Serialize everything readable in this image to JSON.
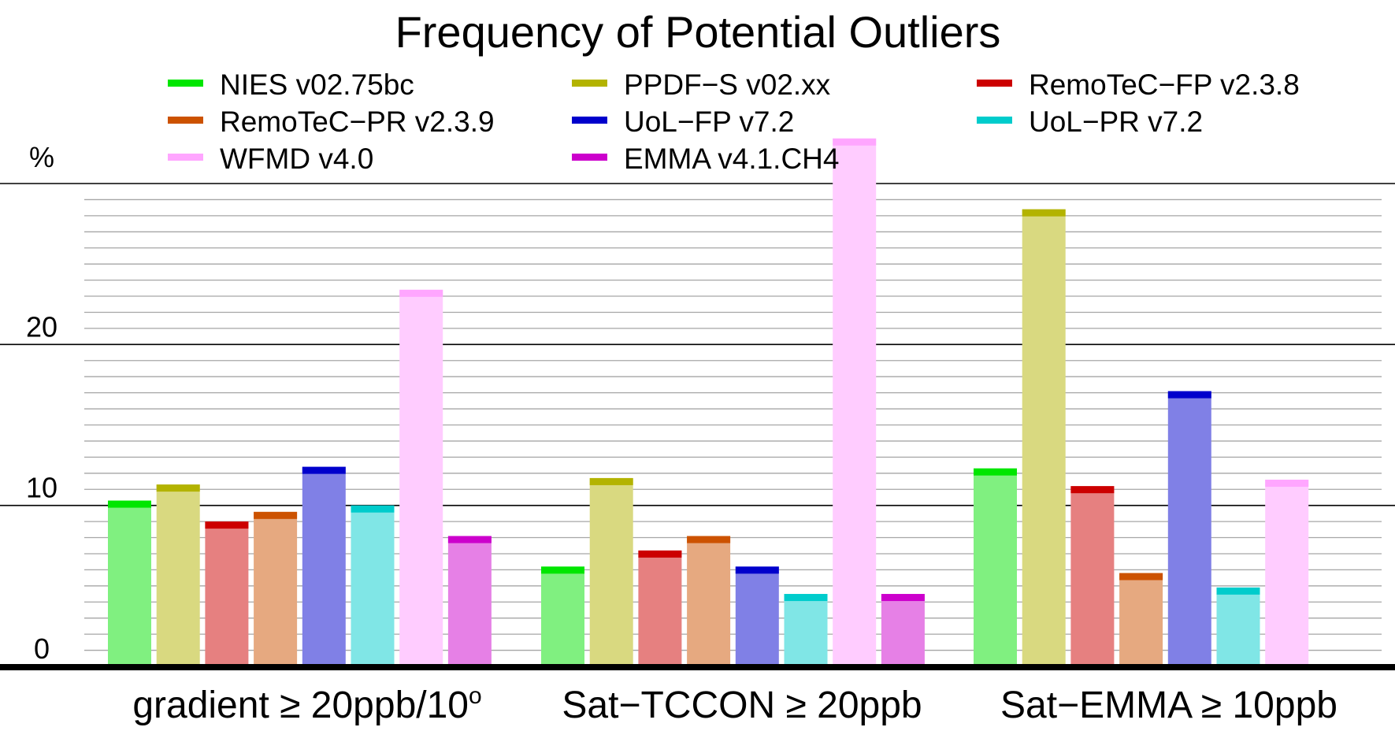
{
  "chart_data": {
    "type": "bar",
    "title": "Frequency of Potential Outliers",
    "ylabel": "%",
    "ylim": [
      0,
      30
    ],
    "yticks": [
      0,
      10,
      20
    ],
    "minor_grid_step": 1,
    "grid": true,
    "legend_position": "top",
    "categories": [
      {
        "pre": "gradient ≥ 20ppb/10",
        "sup": "o"
      },
      {
        "pre": "Sat−TCCON ≥ 20ppb",
        "sup": ""
      },
      {
        "pre": "Sat−EMMA ≥ 10ppb",
        "sup": ""
      }
    ],
    "series": [
      {
        "name": "NIES v02.75bc",
        "color": "#00e600",
        "fill": "#80f080",
        "values": [
          10.3,
          6.2,
          12.3
        ]
      },
      {
        "name": "PPDF−S v02.xx",
        "color": "#b3b300",
        "fill": "#d9d980",
        "values": [
          11.3,
          11.7,
          28.4
        ]
      },
      {
        "name": "RemoTeC−FP v2.3.8",
        "color": "#cc0000",
        "fill": "#e68080",
        "values": [
          9.0,
          7.2,
          11.2
        ]
      },
      {
        "name": "RemoTeC−PR v2.3.9",
        "color": "#cc5200",
        "fill": "#e6a980",
        "values": [
          9.6,
          8.1,
          5.8
        ]
      },
      {
        "name": "UoL−FP v7.2",
        "color": "#0000cc",
        "fill": "#8080e6",
        "values": [
          12.4,
          6.2,
          17.1
        ]
      },
      {
        "name": "UoL−PR v7.2",
        "color": "#00cccc",
        "fill": "#80e6e6",
        "values": [
          10.0,
          4.5,
          4.9
        ]
      },
      {
        "name": "WFMD v4.0",
        "color": "#ffa6ff",
        "fill": "#ffccff",
        "values": [
          23.4,
          32.8,
          11.6
        ]
      },
      {
        "name": "EMMA v4.1.CH4",
        "color": "#cc00cc",
        "fill": "#e680e6",
        "values": [
          8.1,
          4.5,
          null
        ]
      }
    ]
  }
}
